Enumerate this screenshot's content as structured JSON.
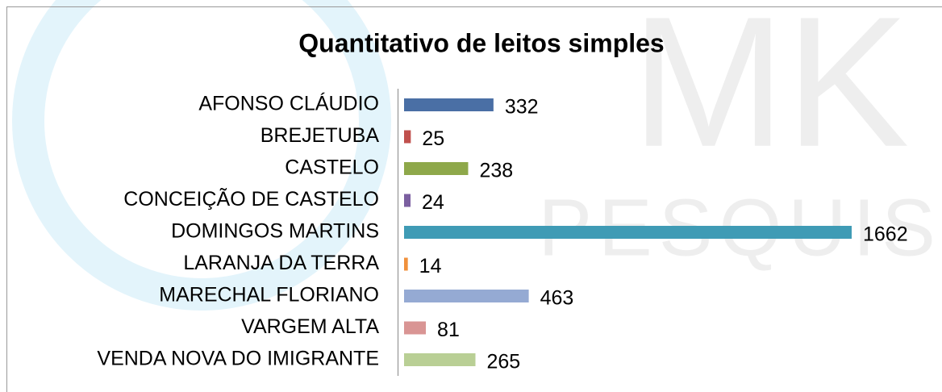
{
  "chart_data": {
    "type": "bar",
    "orientation": "horizontal",
    "title": "Quantitativo de leitos simples",
    "watermark": [
      "MK",
      "PESQUISA"
    ],
    "categories": [
      "AFONSO CLÁUDIO",
      "BREJETUBA",
      "CASTELO",
      "CONCEIÇÃO DE CASTELO",
      "DOMINGOS MARTINS",
      "LARANJA DA TERRA",
      "MARECHAL FLORIANO",
      "VARGEM ALTA",
      "VENDA NOVA DO IMIGRANTE"
    ],
    "values": [
      332,
      25,
      238,
      24,
      1662,
      14,
      463,
      81,
      265
    ],
    "colors": [
      "#4a6fa5",
      "#c0504d",
      "#8ea84a",
      "#7b5fa0",
      "#3f9bb5",
      "#f0913c",
      "#95aad3",
      "#d99594",
      "#b9cf95"
    ]
  }
}
